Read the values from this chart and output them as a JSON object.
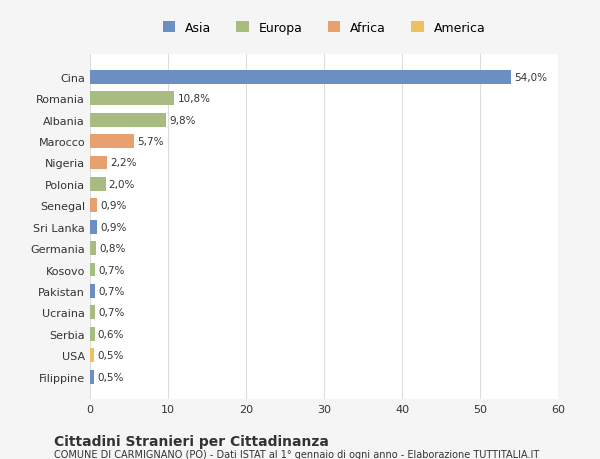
{
  "countries": [
    "Filippine",
    "USA",
    "Serbia",
    "Ucraina",
    "Pakistan",
    "Kosovo",
    "Germania",
    "Sri Lanka",
    "Senegal",
    "Polonia",
    "Nigeria",
    "Marocco",
    "Albania",
    "Romania",
    "Cina"
  ],
  "values": [
    0.5,
    0.5,
    0.6,
    0.7,
    0.7,
    0.7,
    0.8,
    0.9,
    0.9,
    2.0,
    2.2,
    5.7,
    9.8,
    10.8,
    54.0
  ],
  "labels": [
    "0,5%",
    "0,5%",
    "0,6%",
    "0,7%",
    "0,7%",
    "0,7%",
    "0,8%",
    "0,9%",
    "0,9%",
    "2,0%",
    "2,2%",
    "5,7%",
    "9,8%",
    "10,8%",
    "54,0%"
  ],
  "colors": [
    "#6b8fc2",
    "#f0c060",
    "#a8bb80",
    "#a8bb80",
    "#6b8fc2",
    "#a8bb80",
    "#a8bb80",
    "#6b8fc2",
    "#e8a070",
    "#a8bb80",
    "#e8a070",
    "#e8a070",
    "#a8bb80",
    "#a8bb80",
    "#6b8fc2"
  ],
  "legend": [
    {
      "label": "Asia",
      "color": "#6b8fc2"
    },
    {
      "label": "Europa",
      "color": "#a8bb80"
    },
    {
      "label": "Africa",
      "color": "#e8a070"
    },
    {
      "label": "America",
      "color": "#f0c060"
    }
  ],
  "xlim": [
    0,
    60
  ],
  "xticks": [
    0,
    10,
    20,
    30,
    40,
    50,
    60
  ],
  "title": "Cittadini Stranieri per Cittadinanza",
  "subtitle": "COMUNE DI CARMIGNANO (PO) - Dati ISTAT al 1° gennaio di ogni anno - Elaborazione TUTTITALIA.IT",
  "bg_color": "#f5f5f5",
  "bar_bg_color": "#ffffff",
  "grid_color": "#dddddd",
  "text_color": "#333333"
}
